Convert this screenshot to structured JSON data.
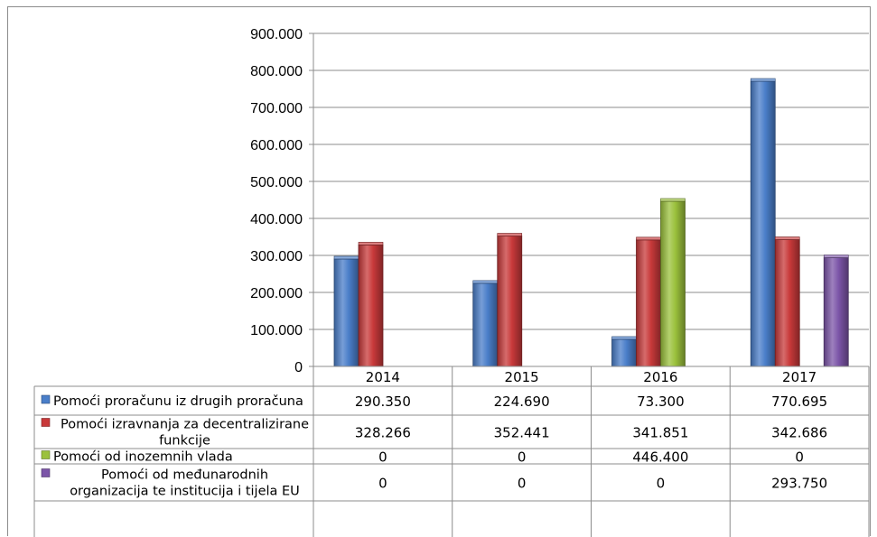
{
  "chart_data": {
    "type": "bar",
    "categories": [
      "2014",
      "2015",
      "2016",
      "2017"
    ],
    "ylim": [
      0,
      900000
    ],
    "yticks": [
      0,
      100000,
      200000,
      300000,
      400000,
      500000,
      600000,
      700000,
      800000,
      900000
    ],
    "ytick_labels": [
      "0",
      "100.000",
      "200.000",
      "300.000",
      "400.000",
      "500.000",
      "600.000",
      "700.000",
      "800.000",
      "900.000"
    ],
    "grid": true,
    "legend_placement": "data table",
    "series": [
      {
        "name": "Pomoći proračunu iz drugih proračuna",
        "color": "#4a7ec9",
        "values": [
          290350,
          224690,
          73300,
          770695
        ],
        "labels": [
          "290.350",
          "224.690",
          "73.300",
          "770.695"
        ]
      },
      {
        "name": "Pomoći izravnanja za decentralizirane funkcije",
        "name_lines": [
          "Pomoći izravnanja za decentralizirane",
          "funkcije"
        ],
        "color": "#c8393a",
        "values": [
          328266,
          352441,
          341851,
          342686
        ],
        "labels": [
          "328.266",
          "352.441",
          "341.851",
          "342.686"
        ]
      },
      {
        "name": "Pomoći od inozemnih vlada",
        "color": "#9bc13c",
        "values": [
          0,
          0,
          446400,
          0
        ],
        "labels": [
          "0",
          "0",
          "446.400",
          "0"
        ]
      },
      {
        "name": "Pomoći od međunarodnih organizacija te institucija i tijela EU",
        "name_lines": [
          "Pomoći od međunarodnih",
          "organizacija te institucija i tijela EU"
        ],
        "color": "#7c55a8",
        "values": [
          0,
          0,
          0,
          293750
        ],
        "labels": [
          "0",
          "0",
          "0",
          "293.750"
        ]
      }
    ]
  }
}
